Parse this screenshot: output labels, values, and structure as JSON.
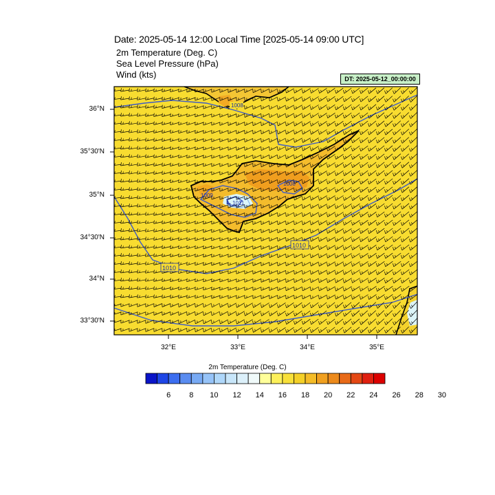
{
  "header": {
    "title": "Date: 2025-05-14  12:00 Local Time [2025-05-14  09:00 UTC]",
    "variables": [
      "2m Temperature (Deg. C)",
      "Sea Level Pressure   (hPa)",
      "Wind   (kts)"
    ],
    "dt_label": "DT: 2025-05-12_00:00:00"
  },
  "map": {
    "lat_labels": [
      "36°N",
      "35°30'N",
      "35°N",
      "34°30'N",
      "34°N",
      "33°30'N"
    ],
    "lon_labels": [
      "32°E",
      "33°E",
      "34°E",
      "35°E"
    ],
    "isobar_labels": [
      "1008",
      "1008",
      "1009",
      "1011",
      "1010",
      "1010"
    ],
    "colors": {
      "background_field": "#f8dc30",
      "land_warm": "#f4b224",
      "land_hot": "#f09a1c",
      "cool_spot": "#d8f4f8",
      "isobar": "#3c5ac8",
      "coast": "#000000"
    }
  },
  "colorbar": {
    "title": "2m Temperature (Deg. C)",
    "labels": [
      "6",
      "8",
      "10",
      "12",
      "14",
      "16",
      "18",
      "20",
      "22",
      "24",
      "26",
      "28",
      "30"
    ],
    "colors": [
      "#0a14c8",
      "#1e46e6",
      "#3c6ef0",
      "#5a8cf0",
      "#78aaf4",
      "#96c3f8",
      "#afd7fa",
      "#c8e6fa",
      "#dcf0fa",
      "#f0fafa",
      "#ffff9a",
      "#fcf05a",
      "#f8e03a",
      "#f4d028",
      "#f4bc28",
      "#f0a020",
      "#ec8a1c",
      "#e86a18",
      "#e44814",
      "#e02010",
      "#dc0000"
    ]
  }
}
